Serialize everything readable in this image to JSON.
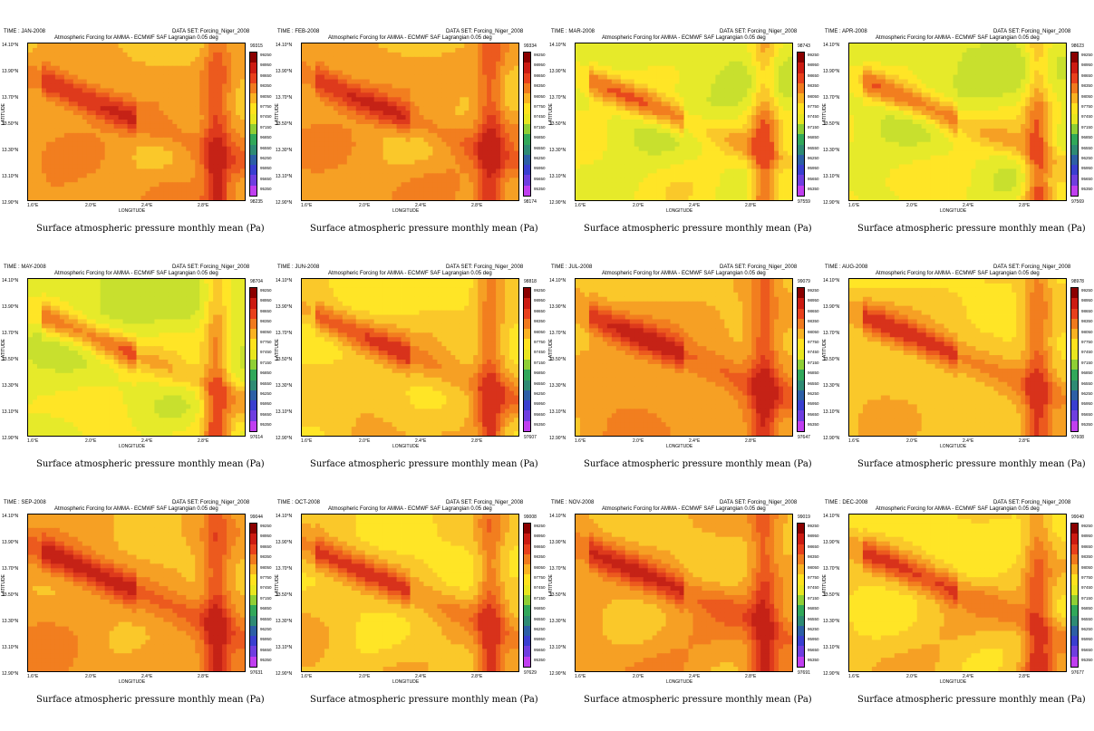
{
  "chart_data": [
    {
      "type": "heatmap",
      "time": "TIME : JAN-2008",
      "dataset": "DATA SET: Forcing_Niger_2008",
      "subtitle": "Atmospheric Forcing for AMMA - ECMWF SAF Lagrangian 0.05 deg",
      "caption": "Surface atmospheric pressure monthly mean (Pa)",
      "xlabel": "LONGITUDE",
      "ylabel": "LATITUDE",
      "max": "99315",
      "min": "98235",
      "style": "warm"
    },
    {
      "type": "heatmap",
      "time": "TIME : FEB-2008",
      "dataset": "DATA SET: Forcing_Niger_2008",
      "subtitle": "Atmospheric Forcing for AMMA - ECMWF SAF Lagrangian 0.05 deg",
      "caption": "Surface atmospheric pressure monthly mean (Pa)",
      "xlabel": "LONGITUDE",
      "ylabel": "LATITUDE",
      "max": "99334",
      "min": "98174",
      "style": "warm"
    },
    {
      "type": "heatmap",
      "time": "TIME : MAR-2008",
      "dataset": "DATA SET: Forcing_Niger_2008",
      "subtitle": "Atmospheric Forcing for AMMA - ECMWF SAF Lagrangian 0.05 deg",
      "caption": "Surface atmospheric pressure monthly mean (Pa)",
      "xlabel": "LONGITUDE",
      "ylabel": "LATITUDE",
      "max": "98743",
      "min": "97559",
      "style": "light"
    },
    {
      "type": "heatmap",
      "time": "TIME : APR-2008",
      "dataset": "DATA SET: Forcing_Niger_2008",
      "subtitle": "Atmospheric Forcing for AMMA - ECMWF SAF Lagrangian 0.05 deg",
      "caption": "Surface atmospheric pressure monthly mean (Pa)",
      "xlabel": "LONGITUDE",
      "ylabel": "LATITUDE",
      "max": "98623",
      "min": "97569",
      "style": "light"
    },
    {
      "type": "heatmap",
      "time": "TIME : MAY-2008",
      "dataset": "DATA SET: Forcing_Niger_2008",
      "subtitle": "Atmospheric Forcing for AMMA - ECMWF SAF Lagrangian 0.05 deg",
      "caption": "Surface atmospheric pressure monthly mean (Pa)",
      "xlabel": "LONGITUDE",
      "ylabel": "LATITUDE",
      "max": "98704",
      "min": "97614",
      "style": "light"
    },
    {
      "type": "heatmap",
      "time": "TIME : JUN-2008",
      "dataset": "DATA SET: Forcing_Niger_2008",
      "subtitle": "Atmospheric Forcing for AMMA - ECMWF SAF Lagrangian 0.05 deg",
      "caption": "Surface atmospheric pressure monthly mean (Pa)",
      "xlabel": "LONGITUDE",
      "ylabel": "LATITUDE",
      "max": "98818",
      "min": "97607",
      "style": "mid"
    },
    {
      "type": "heatmap",
      "time": "TIME : JUL-2008",
      "dataset": "DATA SET: Forcing_Niger_2008",
      "subtitle": "Atmospheric Forcing for AMMA - ECMWF SAF Lagrangian 0.05 deg",
      "caption": "Surface atmospheric pressure monthly mean (Pa)",
      "xlabel": "LONGITUDE",
      "ylabel": "LATITUDE",
      "max": "99079",
      "min": "97647",
      "style": "warm"
    },
    {
      "type": "heatmap",
      "time": "TIME : AUG-2008",
      "dataset": "DATA SET: Forcing_Niger_2008",
      "subtitle": "Atmospheric Forcing for AMMA - ECMWF SAF Lagrangian 0.05 deg",
      "caption": "Surface atmospheric pressure monthly mean (Pa)",
      "xlabel": "LONGITUDE",
      "ylabel": "LATITUDE",
      "max": "98978",
      "min": "97608",
      "style": "mid"
    },
    {
      "type": "heatmap",
      "time": "TIME : SEP-2008",
      "dataset": "DATA SET: Forcing_Niger_2008",
      "subtitle": "Atmospheric Forcing for AMMA - ECMWF SAF Lagrangian 0.05 deg",
      "caption": "Surface atmospheric pressure monthly mean (Pa)",
      "xlabel": "LONGITUDE",
      "ylabel": "LATITUDE",
      "max": "99044",
      "min": "97631",
      "style": "warm"
    },
    {
      "type": "heatmap",
      "time": "TIME : OCT-2008",
      "dataset": "DATA SET: Forcing_Niger_2008",
      "subtitle": "Atmospheric Forcing for AMMA - ECMWF SAF Lagrangian 0.05 deg",
      "caption": "Surface atmospheric pressure monthly mean (Pa)",
      "xlabel": "LONGITUDE",
      "ylabel": "LATITUDE",
      "max": "99008",
      "min": "97629",
      "style": "mid"
    },
    {
      "type": "heatmap",
      "time": "TIME : NOV-2008",
      "dataset": "DATA SET: Forcing_Niger_2008",
      "subtitle": "Atmospheric Forcing for AMMA - ECMWF SAF Lagrangian 0.05 deg",
      "caption": "Surface atmospheric pressure monthly mean (Pa)",
      "xlabel": "LONGITUDE",
      "ylabel": "LATITUDE",
      "max": "99019",
      "min": "97691",
      "style": "warm"
    },
    {
      "type": "heatmap",
      "time": "TIME : DEC-2008",
      "dataset": "DATA SET: Forcing_Niger_2008",
      "subtitle": "Atmospheric Forcing for AMMA - ECMWF SAF Lagrangian 0.05 deg",
      "caption": "Surface atmospheric pressure monthly mean (Pa)",
      "xlabel": "LONGITUDE",
      "ylabel": "LATITUDE",
      "max": "99040",
      "min": "97677",
      "style": "mid"
    }
  ],
  "axes": {
    "xticks": [
      "1.6°E",
      "2.0°E",
      "2.4°E",
      "2.8°E"
    ],
    "yticks": [
      "14.10°N",
      "13.90°N",
      "13.70°N",
      "13.50°N",
      "13.30°N",
      "13.10°N",
      "12.90°N"
    ]
  },
  "colorbar": {
    "levels": [
      "99250",
      "98950",
      "98650",
      "98350",
      "98050",
      "97750",
      "97450",
      "97150",
      "96850",
      "96550",
      "96250",
      "95950",
      "95650",
      "95350"
    ],
    "colors": [
      "#8b0000",
      "#cc1b12",
      "#e8401c",
      "#f07a1e",
      "#f9b222",
      "#ffe21e",
      "#e8e61f",
      "#8fcf35",
      "#31a85a",
      "#2e8b74",
      "#2d5fa6",
      "#3a3fd0",
      "#6f3ee0",
      "#c03ff0"
    ]
  },
  "fills": {
    "warm": [
      "#c52216",
      "#de3a1c",
      "#ec5a1e",
      "#f27e1f",
      "#f6a024",
      "#fac82a"
    ],
    "mid": [
      "#d8321b",
      "#ec5a1e",
      "#f27e1f",
      "#f6a024",
      "#fac82a",
      "#ffe526"
    ],
    "light": [
      "#e8481d",
      "#f27e1f",
      "#f6a024",
      "#fac82a",
      "#ffe526",
      "#e6ea2a",
      "#c8e02e"
    ]
  }
}
